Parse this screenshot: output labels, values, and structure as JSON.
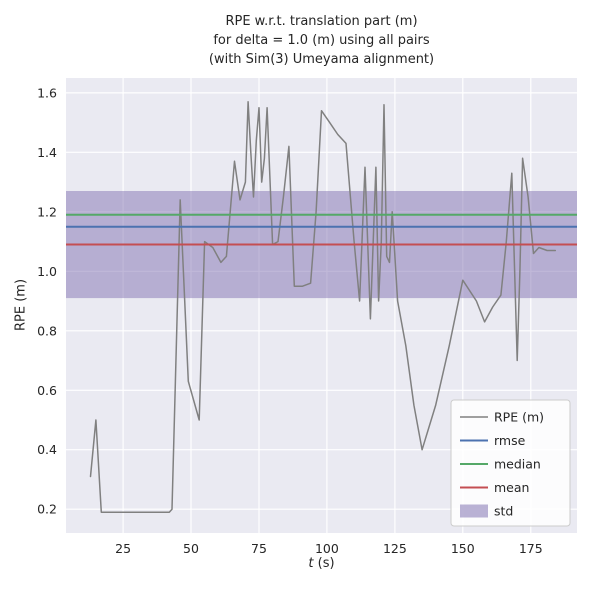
{
  "colors": {
    "line": "#808080",
    "rmse": "#4c72b0",
    "median": "#55a868",
    "mean": "#c44e52",
    "std_fill": "#8172b2",
    "axes_bg": "#eaeaf2",
    "grid": "#ffffff",
    "text": "#262626",
    "legend_border": "#cccccc",
    "figure_bg": "#ffffff"
  },
  "chart_data": {
    "type": "line",
    "title_lines": [
      "RPE w.r.t. translation part (m)",
      "for delta = 1.0 (m) using all pairs",
      "(with Sim(3) Umeyama alignment)"
    ],
    "xlabel": "t (s)",
    "xlabel_math": "t",
    "xlabel_rest": " (s)",
    "ylabel": "RPE (m)",
    "xlim": [
      4,
      192
    ],
    "ylim": [
      0.12,
      1.65
    ],
    "xticks": [
      25,
      50,
      75,
      100,
      125,
      150,
      175
    ],
    "yticks": [
      0.2,
      0.4,
      0.6,
      0.8,
      1.0,
      1.2,
      1.4,
      1.6
    ],
    "grid": true,
    "legend_position": "lower right",
    "x": [
      13,
      15,
      17,
      20,
      25,
      30,
      35,
      40,
      42,
      43,
      46,
      49,
      53,
      55,
      58,
      61,
      63,
      66,
      68,
      70,
      71,
      72,
      73,
      74,
      75,
      76,
      77,
      78,
      80,
      82,
      84,
      86,
      88,
      91,
      94,
      96,
      98,
      101,
      104,
      107,
      110,
      112,
      114,
      116,
      118,
      119,
      120,
      121,
      122,
      123,
      124,
      126,
      129,
      132,
      135,
      140,
      145,
      150,
      155,
      158,
      161,
      164,
      166,
      168,
      170,
      171,
      172,
      174,
      176,
      178,
      181,
      184
    ],
    "series": [
      {
        "name": "RPE (m)",
        "values": [
          0.31,
          0.5,
          0.19,
          0.19,
          0.19,
          0.19,
          0.19,
          0.19,
          0.19,
          0.2,
          1.24,
          0.63,
          0.5,
          1.1,
          1.08,
          1.03,
          1.05,
          1.37,
          1.24,
          1.3,
          1.57,
          1.4,
          1.25,
          1.44,
          1.55,
          1.3,
          1.38,
          1.55,
          1.09,
          1.1,
          1.25,
          1.42,
          0.95,
          0.95,
          0.96,
          1.2,
          1.54,
          1.5,
          1.46,
          1.43,
          1.1,
          0.9,
          1.35,
          0.84,
          1.35,
          0.9,
          1.1,
          1.56,
          1.05,
          1.03,
          1.2,
          0.9,
          0.75,
          0.55,
          0.4,
          0.55,
          0.75,
          0.97,
          0.9,
          0.83,
          0.88,
          0.92,
          1.1,
          1.33,
          0.7,
          1.0,
          1.38,
          1.25,
          1.06,
          1.08,
          1.07,
          1.07
        ]
      }
    ],
    "stats": {
      "rmse": 1.15,
      "median": 1.19,
      "mean": 1.09,
      "std": 0.18,
      "std_low": 0.91,
      "std_high": 1.27
    },
    "legend": [
      {
        "label": "RPE (m)",
        "key": "line",
        "type": "line"
      },
      {
        "label": "rmse",
        "key": "rmse",
        "type": "line"
      },
      {
        "label": "median",
        "key": "median",
        "type": "line"
      },
      {
        "label": "mean",
        "key": "mean",
        "type": "line"
      },
      {
        "label": "std",
        "key": "std_fill",
        "type": "patch"
      }
    ]
  }
}
